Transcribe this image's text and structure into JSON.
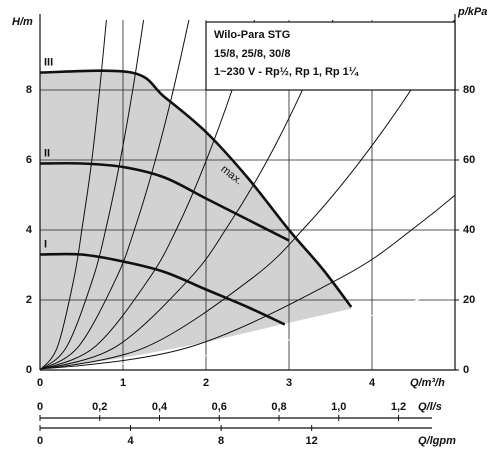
{
  "chart_data": {
    "type": "line",
    "title": "Wilo-Para STG",
    "subtitle": "15/8, 25/8, 30/8",
    "note": "1~230 V - Rp½, Rp 1, Rp 1¼",
    "y_label": "H/m",
    "y2_label": "p/kPa",
    "x_label": "Q/m³/h",
    "annotation": "max.",
    "xlim": [
      0,
      5
    ],
    "xticks": [
      0,
      1,
      2,
      3,
      4
    ],
    "ylim": [
      0,
      10
    ],
    "yticks": [
      0,
      2,
      4,
      6,
      8
    ],
    "y2lim": [
      0,
      100
    ],
    "y2ticks": [
      0,
      20,
      40,
      60,
      80
    ],
    "grid": true,
    "extra_x_axes": [
      {
        "label": "Q/l/s",
        "xlim": [
          0,
          1.389
        ],
        "xticks": [
          0,
          {
            "value": 0.2,
            "label": "0,2"
          },
          {
            "value": 0.4,
            "label": "0,4"
          },
          {
            "value": 0.6,
            "label": "0,6"
          },
          {
            "value": 0.8,
            "label": "0,8"
          },
          {
            "value": 1.0,
            "label": "1,0"
          },
          {
            "value": 1.2,
            "label": "1,2"
          }
        ]
      },
      {
        "label": "Q/lgpm",
        "xlim": [
          0,
          18.33
        ],
        "xticks": [
          0,
          4,
          8,
          12
        ]
      }
    ],
    "series": [
      {
        "name": "III",
        "color": "#111111",
        "x": [
          0,
          1.1,
          1.5,
          2,
          2.5,
          3,
          3.4,
          3.75
        ],
        "values": [
          8.5,
          8.5,
          7.8,
          6.8,
          5.5,
          4.0,
          2.9,
          1.8
        ]
      },
      {
        "name": "II",
        "color": "#111111",
        "x": [
          0,
          0.5,
          1,
          1.5,
          2,
          2.5,
          3
        ],
        "values": [
          5.9,
          5.9,
          5.8,
          5.5,
          4.9,
          4.3,
          3.7
        ]
      },
      {
        "name": "I",
        "color": "#111111",
        "x": [
          0,
          0.5,
          1,
          1.5,
          2,
          2.5,
          2.95
        ],
        "values": [
          3.3,
          3.3,
          3.1,
          2.8,
          2.3,
          1.8,
          1.3
        ]
      }
    ],
    "area": {
      "color": "#d2d2d2",
      "x": [
        0,
        1,
        2,
        3,
        3.75
      ],
      "lower": [
        0,
        0.35,
        0.8,
        1.35,
        1.75
      ]
    },
    "system_curves": [
      {
        "color": "#111111",
        "x": [
          0,
          0.21,
          0.41,
          0.51,
          0.62,
          0.72,
          0.82
        ],
        "values": [
          0,
          0.66,
          2.63,
          4.1,
          5.91,
          8.04,
          10.5
        ]
      },
      {
        "color": "#111111",
        "x": [
          0,
          0.32,
          0.64,
          0.8,
          0.96,
          1.12,
          1.28
        ],
        "values": [
          0,
          0.66,
          2.63,
          4.1,
          5.91,
          8.04,
          10.5
        ]
      },
      {
        "color": "#111111",
        "x": [
          0,
          0.46,
          0.92,
          1.15,
          1.38,
          1.61,
          1.84
        ],
        "values": [
          0,
          0.66,
          2.63,
          4.1,
          5.91,
          8.04,
          10.5
        ]
      },
      {
        "color": "#111111",
        "x": [
          0,
          0.66,
          1.32,
          1.66,
          1.99,
          2.32,
          2.65
        ],
        "values": [
          0,
          0.66,
          2.63,
          4.1,
          5.91,
          8.04,
          10.5
        ]
      },
      {
        "color": "#111111",
        "x": [
          0,
          0.91,
          1.81,
          2.26,
          2.72,
          3.17,
          3.62
        ],
        "values": [
          0,
          0.66,
          2.63,
          4.1,
          5.91,
          8.04,
          10.5
        ]
      },
      {
        "color": "#111111",
        "x": [
          0,
          1.28,
          2.56,
          3.2,
          3.84,
          4.48,
          5.12
        ],
        "values": [
          0,
          0.66,
          2.63,
          4.1,
          5.91,
          8.04,
          10.5
        ]
      },
      {
        "color": "#111111",
        "x": [
          0,
          1.81,
          3.62,
          4.53,
          5.44,
          6.34,
          7.25
        ],
        "values": [
          0,
          0.66,
          2.63,
          4.1,
          5.91,
          8.04,
          10.5
        ]
      },
      {
        "color": "#ffffff",
        "x": [
          0,
          2.64,
          5.28,
          6.61,
          7.93,
          9.25,
          10.57
        ],
        "values": [
          0,
          0.66,
          2.63,
          4.1,
          5.91,
          8.04,
          10.5
        ]
      }
    ]
  }
}
